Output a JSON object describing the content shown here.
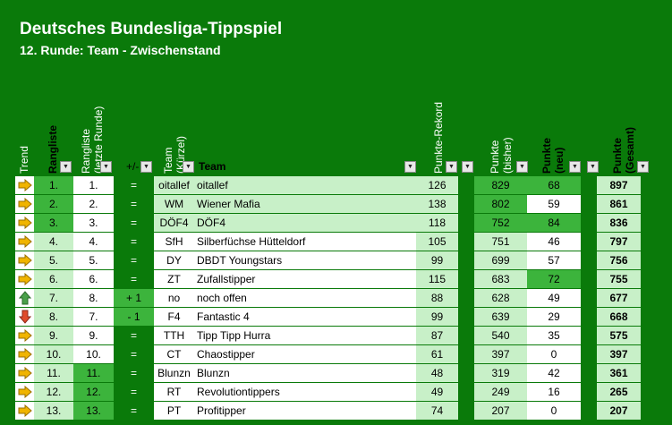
{
  "header": {
    "title": "Deutsches Bundesliga-Tippspiel",
    "subtitle": "12. Runde: Team - Zwischenstand"
  },
  "columns": {
    "trend": "Trend",
    "rangliste": "Rangliste",
    "rangliste_last": "Rangliste\n(letzte Runde)",
    "change": "+/-",
    "team_short": "Team\n(Kürzel)",
    "team": "Team",
    "rekord": "Punkte-Rekord",
    "bisher": "Punkte\n(bisher)",
    "neu": "Punkte\n(neu)",
    "gesamt": "Punkte\n(Gesamt)"
  },
  "colors": {
    "background": "#0a7a0a",
    "trend_right": "#f0b400",
    "trend_up": "#4aa04a",
    "trend_down": "#e04a2a"
  },
  "rows": [
    {
      "trend": "right",
      "rank": "1.",
      "last": "1.",
      "change": "=",
      "short": "oitallef",
      "team": "oitallef",
      "rekord": "126",
      "bisher": "829",
      "neu": "68",
      "gesamt": "897"
    },
    {
      "trend": "right",
      "rank": "2.",
      "last": "2.",
      "change": "=",
      "short": "WM",
      "team": "Wiener Mafia",
      "rekord": "138",
      "bisher": "802",
      "neu": "59",
      "gesamt": "861"
    },
    {
      "trend": "right",
      "rank": "3.",
      "last": "3.",
      "change": "=",
      "short": "DÖF4",
      "team": "DÖF4",
      "rekord": "118",
      "bisher": "752",
      "neu": "84",
      "gesamt": "836"
    },
    {
      "trend": "right",
      "rank": "4.",
      "last": "4.",
      "change": "=",
      "short": "SfH",
      "team": "Silberfüchse Hütteldorf",
      "rekord": "105",
      "bisher": "751",
      "neu": "46",
      "gesamt": "797"
    },
    {
      "trend": "right",
      "rank": "5.",
      "last": "5.",
      "change": "=",
      "short": "DY",
      "team": "DBDT Youngstars",
      "rekord": "99",
      "bisher": "699",
      "neu": "57",
      "gesamt": "756"
    },
    {
      "trend": "right",
      "rank": "6.",
      "last": "6.",
      "change": "=",
      "short": "ZT",
      "team": "Zufallstipper",
      "rekord": "115",
      "bisher": "683",
      "neu": "72",
      "gesamt": "755"
    },
    {
      "trend": "up",
      "rank": "7.",
      "last": "8.",
      "change": "+ 1",
      "short": "no",
      "team": "noch offen",
      "rekord": "88",
      "bisher": "628",
      "neu": "49",
      "gesamt": "677"
    },
    {
      "trend": "down",
      "rank": "8.",
      "last": "7.",
      "change": "- 1",
      "short": "F4",
      "team": "Fantastic 4",
      "rekord": "99",
      "bisher": "639",
      "neu": "29",
      "gesamt": "668"
    },
    {
      "trend": "right",
      "rank": "9.",
      "last": "9.",
      "change": "=",
      "short": "TTH",
      "team": "Tipp Tipp Hurra",
      "rekord": "87",
      "bisher": "540",
      "neu": "35",
      "gesamt": "575"
    },
    {
      "trend": "right",
      "rank": "10.",
      "last": "10.",
      "change": "=",
      "short": "CT",
      "team": "Chaostipper",
      "rekord": "61",
      "bisher": "397",
      "neu": "0",
      "gesamt": "397"
    },
    {
      "trend": "right",
      "rank": "11.",
      "last": "11.",
      "change": "=",
      "short": "Blunzn",
      "team": "Blunzn",
      "rekord": "48",
      "bisher": "319",
      "neu": "42",
      "gesamt": "361"
    },
    {
      "trend": "right",
      "rank": "12.",
      "last": "12.",
      "change": "=",
      "short": "RT",
      "team": "Revolutiontippers",
      "rekord": "49",
      "bisher": "249",
      "neu": "16",
      "gesamt": "265"
    },
    {
      "trend": "right",
      "rank": "13.",
      "last": "13.",
      "change": "=",
      "short": "PT",
      "team": "Profitipper",
      "rekord": "74",
      "bisher": "207",
      "neu": "0",
      "gesamt": "207"
    }
  ]
}
